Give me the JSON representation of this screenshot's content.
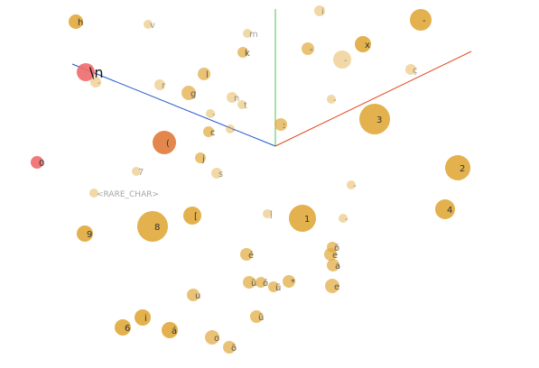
{
  "viewer": {
    "axis_colors": {
      "x": "#e04a1b",
      "y": "#4fc04f",
      "z": "#2156c9"
    },
    "point_color": "#e0a83a",
    "highlight_color": "#f06a6a",
    "orange_color": "#e07a3a"
  },
  "points": [
    {
      "label": "h",
      "depth": "near"
    },
    {
      "label": "v",
      "depth": "far"
    },
    {
      "label": "i",
      "depth": "far"
    },
    {
      "label": "m",
      "depth": "far"
    },
    {
      "label": "k",
      "depth": "mid"
    },
    {
      "label": "-",
      "depth": "mid"
    },
    {
      "label": "x",
      "depth": "near"
    },
    {
      "label": "-",
      "depth": "near"
    },
    {
      "label": "\\n",
      "depth": "near",
      "highlight": true
    },
    {
      "label": "l",
      "depth": "mid"
    },
    {
      "label": "r",
      "depth": "far"
    },
    {
      "label": "g",
      "depth": "mid"
    },
    {
      "label": "n",
      "depth": "far"
    },
    {
      "label": "t",
      "depth": "far"
    },
    {
      "label": "c",
      "depth": "mid"
    },
    {
      "label": "(",
      "depth": "near",
      "orange": true
    },
    {
      "label": "j",
      "depth": "mid"
    },
    {
      "label": "s",
      "depth": "far"
    },
    {
      "label": "7",
      "depth": "far"
    },
    {
      "label": "0",
      "depth": "near",
      "highlight": true
    },
    {
      "label": "<RARE_CHAR>",
      "depth": "far"
    },
    {
      "label": "8",
      "depth": "near"
    },
    {
      "label": "[",
      "depth": "near"
    },
    {
      "label": "9",
      "depth": "near"
    },
    {
      "label": "3",
      "depth": "near"
    },
    {
      "label": "2",
      "depth": "near"
    },
    {
      "label": "4",
      "depth": "near"
    },
    {
      "label": "1",
      "depth": "near"
    },
    {
      "label": ":",
      "depth": "mid"
    },
    {
      "label": "-",
      "depth": "far"
    },
    {
      "label": "]",
      "depth": "far"
    },
    {
      "label": "e",
      "depth": "mid"
    },
    {
      "label": "ö",
      "depth": "mid"
    },
    {
      "label": "a",
      "depth": "mid"
    },
    {
      "label": "é",
      "depth": "mid"
    },
    {
      "label": "ü",
      "depth": "mid"
    },
    {
      "label": "ó",
      "depth": "mid"
    },
    {
      "label": "ü",
      "depth": "mid"
    },
    {
      "label": "*",
      "depth": "mid"
    },
    {
      "label": "u",
      "depth": "mid"
    },
    {
      "label": "i",
      "depth": "near"
    },
    {
      "label": "ü",
      "depth": "mid"
    },
    {
      "label": "6",
      "depth": "near"
    },
    {
      "label": "á",
      "depth": "near"
    },
    {
      "label": "o",
      "depth": "mid"
    },
    {
      "label": "ö",
      "depth": "mid"
    },
    {
      "label": "e",
      "depth": "mid"
    },
    {
      "label": "ç",
      "depth": "far"
    },
    {
      "label": "-",
      "depth": "far"
    },
    {
      "label": "-",
      "depth": "far"
    },
    {
      "label": "-",
      "depth": "far"
    },
    {
      "label": "-",
      "depth": "far"
    },
    {
      "label": "-",
      "depth": "far"
    },
    {
      "label": "-",
      "depth": "far"
    }
  ]
}
